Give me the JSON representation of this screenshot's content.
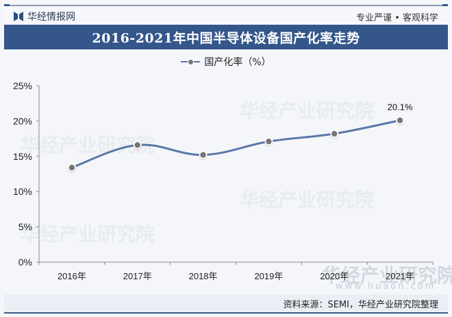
{
  "header": {
    "logo_text": "华经情报网",
    "slogan": "专业严谨 • 客观科学"
  },
  "title": "2016-2021年中国半导体设备国产化率走势",
  "legend": {
    "label": "国产化率（%）",
    "color": "#5a77a8"
  },
  "watermark": {
    "text": "华经产业研究院",
    "url": "www.huaon.com"
  },
  "footer": {
    "source": "资料来源：SEMI，华经产业研究院整理"
  },
  "chart_data": {
    "type": "line",
    "title": "2016-2021年中国半导体设备国产化率走势",
    "xlabel": "",
    "ylabel": "",
    "categories": [
      "2016年",
      "2017年",
      "2018年",
      "2019年",
      "2020年",
      "2021年"
    ],
    "series": [
      {
        "name": "国产化率（%）",
        "values": [
          13.4,
          16.6,
          15.2,
          17.1,
          18.2,
          20.1
        ],
        "color": "#5a77a8",
        "marker_color": "#757575"
      }
    ],
    "data_labels": [
      {
        "index": 5,
        "text": "20.1%"
      }
    ],
    "y_ticks": [
      "0%",
      "5%",
      "10%",
      "15%",
      "20%",
      "25%"
    ],
    "ylim": [
      0,
      25
    ],
    "grid": false,
    "legend_position": "top",
    "smooth": true
  }
}
